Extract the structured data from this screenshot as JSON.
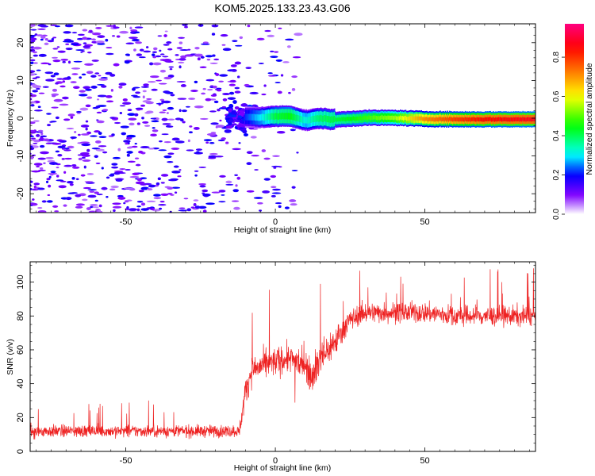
{
  "title": "KOM5.2025.133.23.43.G06",
  "chart_data": [
    {
      "type": "heatmap",
      "name": "spectrogram",
      "xlabel": "Height of straight line (km)",
      "ylabel": "Frequency (Hz)",
      "xlim": [
        -82,
        87
      ],
      "ylim": [
        -25,
        25
      ],
      "xticks": [
        -50,
        0,
        50
      ],
      "yticks": [
        -20,
        -10,
        0,
        10,
        20
      ],
      "grid": false,
      "colorbar": {
        "label": "Normalized spectral amplitude",
        "range": [
          0,
          0.97
        ],
        "ticks": [
          0.0,
          0.2,
          0.4,
          0.6,
          0.8
        ],
        "tick_labels": [
          "0.0",
          "0.2",
          "0.4",
          "0.6",
          "0.8"
        ],
        "colormap": "hsv-rainbow",
        "colors": [
          "#ffffff",
          "#7f00ff",
          "#0000ff",
          "#00ffff",
          "#00ff00",
          "#ffff00",
          "#ff8000",
          "#ff0000",
          "#ff0080"
        ]
      },
      "ridge_line": {
        "description": "dominant frequency near 0 Hz above about -10 km",
        "x": [
          -10,
          -5,
          0,
          5,
          10,
          15,
          20,
          30,
          40,
          50,
          60,
          70,
          87
        ],
        "frequency": [
          0.3,
          0.2,
          0.5,
          0.6,
          -0.6,
          0.0,
          -0.4,
          0.1,
          0.1,
          -0.2,
          -0.3,
          -0.3,
          -0.3
        ],
        "amplitude": [
          0.22,
          0.3,
          0.42,
          0.45,
          0.32,
          0.4,
          0.42,
          0.48,
          0.55,
          0.72,
          0.8,
          0.85,
          0.88
        ]
      },
      "noise_region": {
        "x_range": [
          -82,
          -12
        ],
        "amplitude_range": [
          0.05,
          0.2
        ]
      }
    },
    {
      "type": "line",
      "name": "snr",
      "xlabel": "Height of straight line (km)",
      "ylabel": "SNR (v/v)",
      "xlim": [
        -82,
        87
      ],
      "ylim": [
        0,
        112
      ],
      "xticks": [
        -50,
        0,
        50
      ],
      "yticks": [
        0,
        20,
        40,
        60,
        80,
        100
      ],
      "grid": false,
      "color": "#ee2222",
      "series": [
        {
          "x": [
            -82,
            -70,
            -60,
            -50,
            -40,
            -30,
            -20,
            -12,
            -10,
            -8,
            -5,
            0,
            5,
            10,
            12,
            15,
            20,
            25,
            30,
            40,
            50,
            60,
            70,
            80,
            87
          ],
          "mean": [
            12,
            12,
            12,
            12,
            12,
            12,
            12,
            12,
            35,
            48,
            50,
            53,
            55,
            52,
            45,
            55,
            65,
            78,
            82,
            82,
            82,
            80,
            80,
            80,
            80
          ],
          "spread": [
            6,
            6,
            6,
            6,
            6,
            6,
            6,
            6,
            14,
            14,
            14,
            14,
            14,
            16,
            16,
            18,
            16,
            10,
            10,
            10,
            10,
            10,
            10,
            10,
            10
          ]
        }
      ]
    }
  ]
}
